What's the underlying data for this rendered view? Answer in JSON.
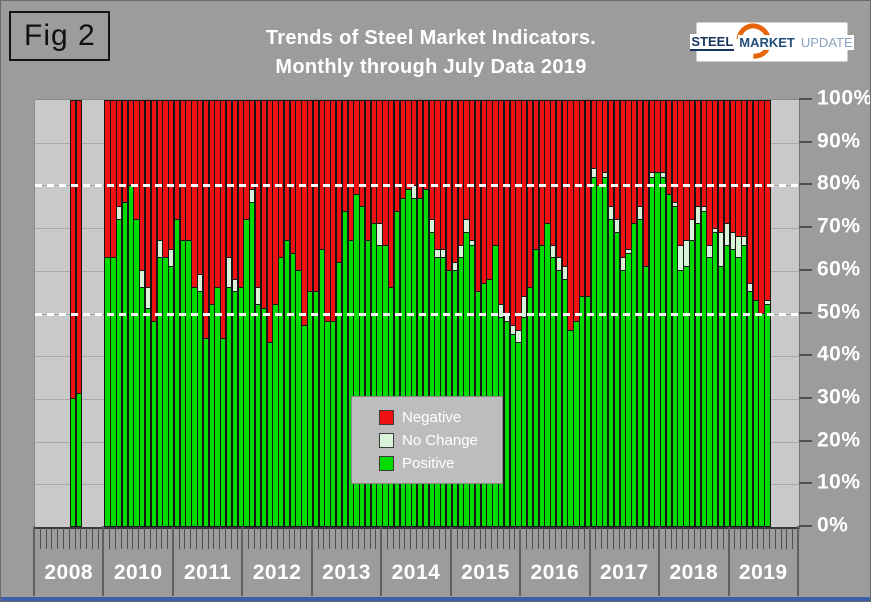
{
  "header": {
    "fig_label": "Fig 2",
    "title_line1": "Trends of Steel Market Indicators.",
    "title_line2": "Monthly through July Data  2019",
    "logo": {
      "word1": "STEEL",
      "word2": "MARKET",
      "word3": "UPDATE"
    }
  },
  "chart_data": {
    "type": "bar",
    "stacked": true,
    "unit": "percent of respondents",
    "title": "Trends of Steel Market Indicators. Monthly through July Data 2019",
    "ylim": [
      0,
      100
    ],
    "y_tick_labels": [
      "100%",
      "90%",
      "80%",
      "70%",
      "60%",
      "50%",
      "40%",
      "30%",
      "20%",
      "10%",
      "0%"
    ],
    "dashed_gridlines_pct": [
      80,
      50
    ],
    "grid": "solid gray line every 10%, white dashed emphasis at 80% and 50%",
    "legend_position": "center of plot, overlaying bars",
    "legend": [
      {
        "label": "Negative",
        "color": "#ee1111"
      },
      {
        "label": "No Change",
        "color": "#d8f3d8"
      },
      {
        "label": "Positive",
        "color": "#00dc00"
      }
    ],
    "series_order_bottom_to_top": [
      "Positive",
      "No Change",
      "Negative"
    ],
    "slots_per_group": 12,
    "note": "values per bar are [positive, no_change, negative] perc들; 2009 has no data and no axis label; 2008 shows only two surveyed months; 2019 runs January–July",
    "x_groups": [
      {
        "label": "2008",
        "start_slot": 6,
        "bars": [
          [
            30,
            0,
            70
          ],
          [
            31,
            0,
            69
          ]
        ]
      },
      {
        "label": "2010",
        "start_slot": 0,
        "bars": [
          [
            63,
            0,
            37
          ],
          [
            63,
            0,
            37
          ],
          [
            72,
            3,
            25
          ],
          [
            76,
            0,
            24
          ],
          [
            80,
            0,
            20
          ],
          [
            72,
            0,
            28
          ],
          [
            56,
            4,
            40
          ],
          [
            51,
            5,
            44
          ],
          [
            48,
            0,
            52
          ],
          [
            63,
            4,
            33
          ],
          [
            63,
            0,
            37
          ],
          [
            61,
            4,
            35
          ]
        ]
      },
      {
        "label": "2011",
        "start_slot": 0,
        "bars": [
          [
            72,
            0,
            28
          ],
          [
            67,
            0,
            33
          ],
          [
            67,
            0,
            33
          ],
          [
            56,
            0,
            44
          ],
          [
            55,
            4,
            41
          ],
          [
            44,
            0,
            56
          ],
          [
            52,
            0,
            48
          ],
          [
            56,
            0,
            44
          ],
          [
            44,
            0,
            56
          ],
          [
            56,
            7,
            37
          ],
          [
            55,
            3,
            42
          ],
          [
            56,
            0,
            44
          ]
        ]
      },
      {
        "label": "2012",
        "start_slot": 0,
        "bars": [
          [
            72,
            0,
            28
          ],
          [
            76,
            3,
            21
          ],
          [
            52,
            4,
            44
          ],
          [
            51,
            0,
            49
          ],
          [
            43,
            0,
            57
          ],
          [
            52,
            0,
            48
          ],
          [
            63,
            0,
            37
          ],
          [
            67,
            0,
            33
          ],
          [
            64,
            0,
            36
          ],
          [
            60,
            0,
            40
          ],
          [
            47,
            0,
            53
          ],
          [
            55,
            0,
            45
          ]
        ]
      },
      {
        "label": "2013",
        "start_slot": 0,
        "bars": [
          [
            55,
            0,
            45
          ],
          [
            65,
            0,
            35
          ],
          [
            48,
            0,
            52
          ],
          [
            48,
            0,
            52
          ],
          [
            62,
            0,
            38
          ],
          [
            74,
            0,
            26
          ],
          [
            67,
            0,
            33
          ],
          [
            78,
            0,
            22
          ],
          [
            75,
            0,
            25
          ],
          [
            67,
            0,
            33
          ],
          [
            71,
            0,
            29
          ],
          [
            66,
            5,
            29
          ]
        ]
      },
      {
        "label": "2014",
        "start_slot": 0,
        "bars": [
          [
            66,
            0,
            34
          ],
          [
            56,
            0,
            44
          ],
          [
            74,
            0,
            26
          ],
          [
            77,
            0,
            23
          ],
          [
            79,
            0,
            21
          ],
          [
            77,
            3,
            20
          ],
          [
            77,
            0,
            23
          ],
          [
            79,
            0,
            21
          ],
          [
            69,
            3,
            28
          ],
          [
            63,
            2,
            35
          ],
          [
            63,
            2,
            35
          ],
          [
            60,
            0,
            40
          ]
        ]
      },
      {
        "label": "2015",
        "start_slot": 0,
        "bars": [
          [
            60,
            2,
            38
          ],
          [
            63,
            3,
            34
          ],
          [
            69,
            3,
            28
          ],
          [
            66,
            1,
            33
          ],
          [
            55,
            0,
            45
          ],
          [
            57,
            0,
            43
          ],
          [
            58,
            0,
            42
          ],
          [
            66,
            0,
            34
          ],
          [
            49,
            3,
            48
          ],
          [
            48,
            2,
            50
          ],
          [
            45,
            2,
            53
          ],
          [
            43,
            3,
            54
          ]
        ]
      },
      {
        "label": "2016",
        "start_slot": 0,
        "bars": [
          [
            49,
            5,
            46
          ],
          [
            56,
            0,
            44
          ],
          [
            65,
            0,
            35
          ],
          [
            66,
            0,
            34
          ],
          [
            71,
            0,
            29
          ],
          [
            63,
            3,
            34
          ],
          [
            60,
            3,
            37
          ],
          [
            58,
            3,
            39
          ],
          [
            46,
            0,
            54
          ],
          [
            48,
            0,
            52
          ],
          [
            54,
            0,
            46
          ],
          [
            54,
            0,
            46
          ]
        ]
      },
      {
        "label": "2017",
        "start_slot": 0,
        "bars": [
          [
            82,
            2,
            16
          ],
          [
            80,
            0,
            20
          ],
          [
            82,
            1,
            17
          ],
          [
            72,
            3,
            25
          ],
          [
            69,
            3,
            28
          ],
          [
            60,
            3,
            37
          ],
          [
            64,
            1,
            35
          ],
          [
            71,
            0,
            29
          ],
          [
            72,
            3,
            25
          ],
          [
            61,
            0,
            39
          ],
          [
            82,
            1,
            17
          ],
          [
            83,
            0,
            17
          ]
        ]
      },
      {
        "label": "2018",
        "start_slot": 0,
        "bars": [
          [
            82,
            1,
            17
          ],
          [
            78,
            0,
            22
          ],
          [
            75,
            1,
            24
          ],
          [
            60,
            6,
            34
          ],
          [
            61,
            6,
            33
          ],
          [
            67,
            5,
            28
          ],
          [
            71,
            4,
            25
          ],
          [
            74,
            1,
            25
          ],
          [
            63,
            3,
            34
          ],
          [
            69,
            1,
            30
          ],
          [
            61,
            8,
            31
          ],
          [
            66,
            5,
            29
          ]
        ]
      },
      {
        "label": "2019",
        "start_slot": 0,
        "bars": [
          [
            65,
            4,
            31
          ],
          [
            63,
            5,
            32
          ],
          [
            66,
            2,
            32
          ],
          [
            55,
            2,
            43
          ],
          [
            53,
            0,
            47
          ],
          [
            50,
            0,
            50
          ],
          [
            52,
            1,
            47
          ]
        ]
      }
    ]
  }
}
